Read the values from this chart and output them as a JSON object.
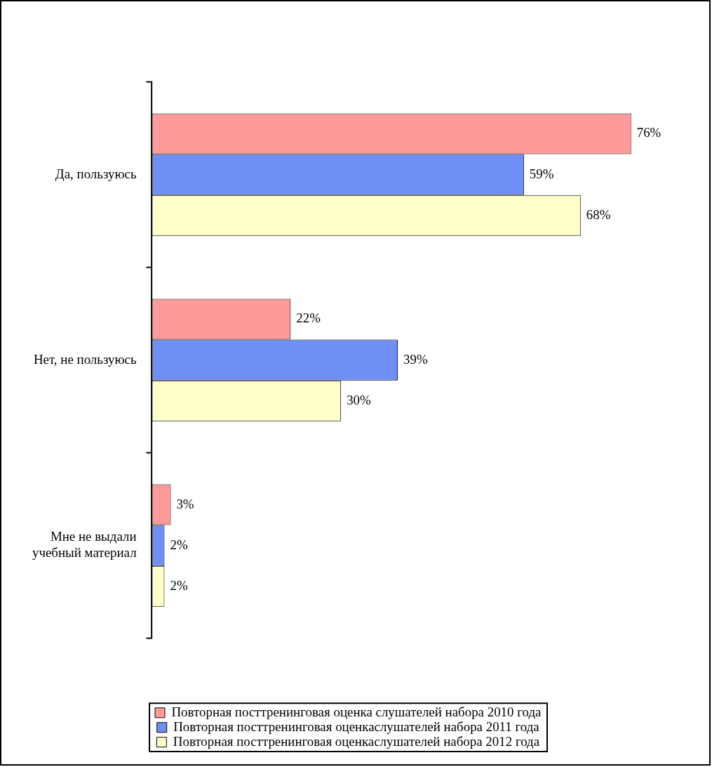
{
  "chart_data": {
    "type": "bar",
    "orientation": "horizontal",
    "categories": [
      "Да, пользуюсь",
      "Нет, не пользуюсь",
      "Мне не выдали учебный материал"
    ],
    "series": [
      {
        "name": "Повторная посттренинговая оценка слушателей набора 2010 года",
        "color": "#ff9a9a",
        "values": [
          76,
          22,
          3
        ],
        "value_labels": [
          "76%",
          "22%",
          "3%"
        ]
      },
      {
        "name": "Повторная посттренинговая оценкаслушателей набора 2011 года",
        "color": "#6f8ff5",
        "values": [
          59,
          39,
          2
        ],
        "value_labels": [
          "59%",
          "39%",
          "2%"
        ]
      },
      {
        "name": "Повторная посттренинговая оценкаслушателей набора 2012 года",
        "color": "#ffffcc",
        "values": [
          68,
          30,
          2
        ],
        "value_labels": [
          "68%",
          "30%",
          "2%"
        ]
      }
    ],
    "legend": "bottom"
  }
}
